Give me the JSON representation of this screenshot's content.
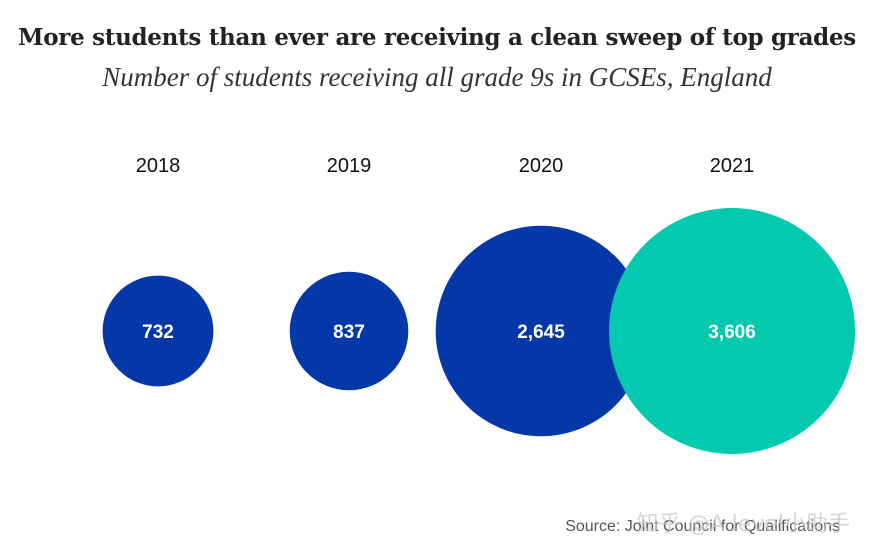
{
  "chart_data": {
    "type": "bubble",
    "title": "More students than ever are receiving a clean sweep of top grades",
    "subtitle": "Number of students receiving all grade 9s in GCSEs, England",
    "categories": [
      "2018",
      "2019",
      "2020",
      "2021"
    ],
    "values": [
      732,
      837,
      2645,
      3606
    ],
    "value_labels": [
      "732",
      "837",
      "2,645",
      "3,606"
    ],
    "colors": [
      "#0437a8",
      "#0437a8",
      "#0437a8",
      "#03c9ae"
    ],
    "source": "Source: Joint Council for Qualifications"
  },
  "watermark": "知乎 @A level小助手"
}
